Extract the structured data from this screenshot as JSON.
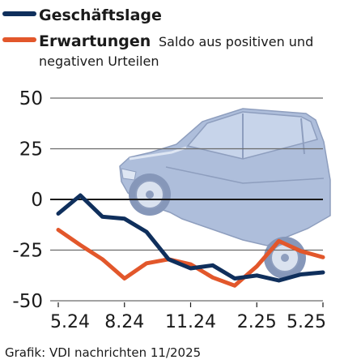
{
  "chart_data": {
    "type": "line",
    "note": "Saldo aus positiven und",
    "note_line2": "negativen Urteilen",
    "x": [
      "5.24",
      "6.24",
      "7.24",
      "8.24",
      "9.24",
      "10.24",
      "11.24",
      "12.24",
      "1.25",
      "2.25",
      "3.25",
      "4.25",
      "5.25"
    ],
    "xticks": [
      "5.24",
      "8.24",
      "11.24",
      "2.25",
      "5.25"
    ],
    "yticks": [
      "50",
      "25",
      "0",
      "-25",
      "-50"
    ],
    "ylim": [
      -50,
      50
    ],
    "series": [
      {
        "name": "Geschäftslage",
        "color": "#0f2f5c",
        "values": [
          -7,
          2,
          -8.5,
          -9.5,
          -16,
          -29.5,
          -34,
          -32.5,
          -39,
          -37.5,
          -40,
          -37,
          -36
        ]
      },
      {
        "name": "Erwartungen",
        "color": "#e2572b",
        "values": [
          -15,
          -22.5,
          -29.5,
          -39,
          -31.5,
          -29.5,
          -32,
          -38.5,
          -42.5,
          -33,
          -20.5,
          -25.5,
          -28.5
        ]
      }
    ],
    "grid": true,
    "legend_position": "top-left",
    "background_image": "car-illustration"
  },
  "credit": "Grafik: VDI nachrichten 11/2025"
}
